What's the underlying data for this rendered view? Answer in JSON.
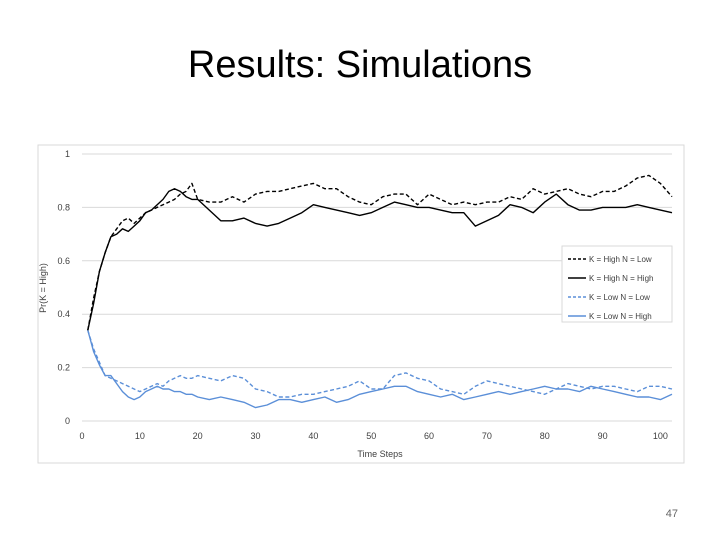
{
  "slide": {
    "title": "Results: Simulations",
    "page_number": "47"
  },
  "chart_data": {
    "type": "line",
    "xlabel": "Time Steps",
    "ylabel": "Pr(K = High)",
    "xlim": [
      0,
      102
    ],
    "ylim": [
      0,
      1
    ],
    "x_ticks": [
      0,
      10,
      20,
      30,
      40,
      50,
      60,
      70,
      80,
      90,
      100
    ],
    "y_ticks": [
      0,
      0.2,
      0.4,
      0.6,
      0.8,
      1
    ],
    "y_tick_labels": [
      "0",
      "0.2",
      "0.4",
      "0.6",
      "0.8",
      "1"
    ],
    "grid": "horizontal",
    "legend_position": "right",
    "x": [
      1,
      2,
      3,
      4,
      5,
      6,
      7,
      8,
      9,
      10,
      11,
      12,
      13,
      14,
      15,
      16,
      17,
      18,
      19,
      20,
      22,
      24,
      26,
      28,
      30,
      32,
      34,
      36,
      38,
      40,
      42,
      44,
      46,
      48,
      50,
      52,
      54,
      56,
      58,
      60,
      62,
      64,
      66,
      68,
      70,
      72,
      74,
      76,
      78,
      80,
      82,
      84,
      86,
      88,
      90,
      92,
      94,
      96,
      98,
      100,
      102
    ],
    "series": [
      {
        "name": "K = High N = Low",
        "color": "#000000",
        "dash": "dashed",
        "values": [
          0.34,
          0.46,
          0.56,
          0.63,
          0.69,
          0.72,
          0.75,
          0.76,
          0.74,
          0.76,
          0.78,
          0.79,
          0.8,
          0.81,
          0.82,
          0.83,
          0.85,
          0.86,
          0.89,
          0.83,
          0.82,
          0.82,
          0.84,
          0.82,
          0.85,
          0.86,
          0.86,
          0.87,
          0.88,
          0.89,
          0.87,
          0.87,
          0.84,
          0.82,
          0.81,
          0.84,
          0.85,
          0.85,
          0.81,
          0.85,
          0.83,
          0.81,
          0.82,
          0.81,
          0.82,
          0.82,
          0.84,
          0.83,
          0.87,
          0.85,
          0.86,
          0.87,
          0.85,
          0.84,
          0.86,
          0.86,
          0.88,
          0.91,
          0.92,
          0.89,
          0.84
        ]
      },
      {
        "name": "K = High N = High",
        "color": "#000000",
        "dash": "solid",
        "values": [
          0.34,
          0.44,
          0.56,
          0.63,
          0.69,
          0.7,
          0.72,
          0.71,
          0.73,
          0.75,
          0.78,
          0.79,
          0.81,
          0.83,
          0.86,
          0.87,
          0.86,
          0.84,
          0.83,
          0.83,
          0.79,
          0.75,
          0.75,
          0.76,
          0.74,
          0.73,
          0.74,
          0.76,
          0.78,
          0.81,
          0.8,
          0.79,
          0.78,
          0.77,
          0.78,
          0.8,
          0.82,
          0.81,
          0.8,
          0.8,
          0.79,
          0.78,
          0.78,
          0.73,
          0.75,
          0.77,
          0.81,
          0.8,
          0.78,
          0.82,
          0.85,
          0.81,
          0.79,
          0.79,
          0.8,
          0.8,
          0.8,
          0.81,
          0.8,
          0.79,
          0.78
        ]
      },
      {
        "name": "K = Low N = Low",
        "color": "#5b8fd8",
        "dash": "dashed",
        "values": [
          0.34,
          0.27,
          0.22,
          0.17,
          0.16,
          0.15,
          0.14,
          0.13,
          0.12,
          0.11,
          0.12,
          0.13,
          0.14,
          0.13,
          0.15,
          0.16,
          0.17,
          0.16,
          0.16,
          0.17,
          0.16,
          0.15,
          0.17,
          0.16,
          0.12,
          0.11,
          0.09,
          0.09,
          0.1,
          0.1,
          0.11,
          0.12,
          0.13,
          0.15,
          0.12,
          0.12,
          0.17,
          0.18,
          0.16,
          0.15,
          0.12,
          0.11,
          0.1,
          0.13,
          0.15,
          0.14,
          0.13,
          0.12,
          0.11,
          0.1,
          0.12,
          0.14,
          0.13,
          0.12,
          0.13,
          0.13,
          0.12,
          0.11,
          0.13,
          0.13,
          0.12
        ]
      },
      {
        "name": "K = Low N = High",
        "color": "#5b8fd8",
        "dash": "solid",
        "values": [
          0.34,
          0.26,
          0.21,
          0.17,
          0.17,
          0.14,
          0.11,
          0.09,
          0.08,
          0.09,
          0.11,
          0.12,
          0.13,
          0.12,
          0.12,
          0.11,
          0.11,
          0.1,
          0.1,
          0.09,
          0.08,
          0.09,
          0.08,
          0.07,
          0.05,
          0.06,
          0.08,
          0.08,
          0.07,
          0.08,
          0.09,
          0.07,
          0.08,
          0.1,
          0.11,
          0.12,
          0.13,
          0.13,
          0.11,
          0.1,
          0.09,
          0.1,
          0.08,
          0.09,
          0.1,
          0.11,
          0.1,
          0.11,
          0.12,
          0.13,
          0.12,
          0.12,
          0.11,
          0.13,
          0.12,
          0.11,
          0.1,
          0.09,
          0.09,
          0.08,
          0.1
        ]
      }
    ]
  }
}
